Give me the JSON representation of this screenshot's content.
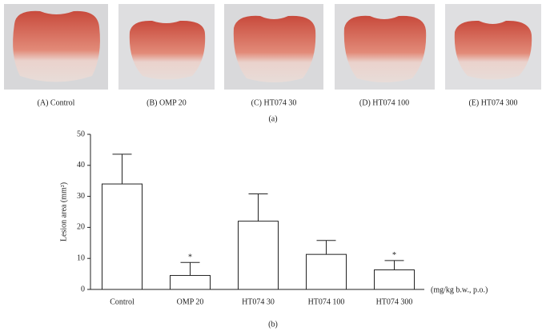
{
  "photos": [
    {
      "label": "(A) Control"
    },
    {
      "label": "(B) OMP 20"
    },
    {
      "label": "(C) HT074 30"
    },
    {
      "label": "(D) HT074 100"
    },
    {
      "label": "(E) HT074 300"
    }
  ],
  "panel_a_caption": "(a)",
  "chart_data": {
    "type": "bar",
    "caption": "(b)",
    "y_label": "Lesion area (mm²)",
    "x_unit_label": "(mg/kg b.w., p.o.)",
    "categories": [
      "Control",
      "OMP 20",
      "HT074 30",
      "HT074 100",
      "HT074 300"
    ],
    "values": [
      34,
      4.5,
      22,
      11.3,
      6.3
    ],
    "errors": [
      9.6,
      4.2,
      8.8,
      4.5,
      3
    ],
    "significance": [
      null,
      "*",
      null,
      null,
      "*"
    ],
    "color": "#ffffff",
    "ylim": [
      0,
      50
    ],
    "yticks": [
      0,
      10,
      20,
      30,
      40,
      50
    ],
    "grid": false
  }
}
